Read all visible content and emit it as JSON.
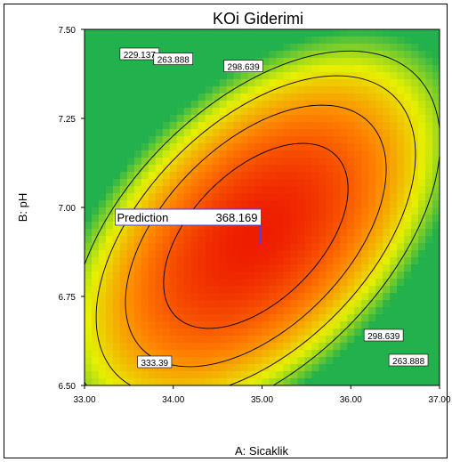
{
  "chart_data": {
    "type": "heatmap",
    "title": "KOi Giderimi",
    "xlabel": "A: Sicaklik",
    "ylabel": "B: pH",
    "xlim": [
      33.0,
      37.0
    ],
    "ylim": [
      6.5,
      7.5
    ],
    "x_ticks": [
      "33.00",
      "34.00",
      "35.00",
      "36.00",
      "37.00"
    ],
    "y_ticks": [
      "6.50",
      "6.75",
      "7.00",
      "7.25",
      "7.50"
    ],
    "x_tick_values": [
      33.0,
      34.0,
      35.0,
      36.0,
      37.0
    ],
    "y_tick_values": [
      6.5,
      6.75,
      7.0,
      7.25,
      7.5
    ],
    "contour_levels": [
      229.137,
      263.888,
      298.639,
      333.39
    ],
    "contour_labels": [
      {
        "text": "229.137",
        "x": 33.62,
        "y": 7.43
      },
      {
        "text": "263.888",
        "x": 34.0,
        "y": 7.416
      },
      {
        "text": "298.639",
        "x": 34.79,
        "y": 7.396
      },
      {
        "text": "333.39",
        "x": 33.79,
        "y": 6.565
      },
      {
        "text": "298.639",
        "x": 36.37,
        "y": 6.64
      },
      {
        "text": "263.888",
        "x": 36.65,
        "y": 6.57
      }
    ],
    "prediction": {
      "label": "Prediction",
      "value": "368.169",
      "x": 34.98,
      "y": 6.9
    },
    "colormap": [
      "#22b14c",
      "#e6f000",
      "#ff8000",
      "#ee1c00"
    ],
    "grid": false
  }
}
